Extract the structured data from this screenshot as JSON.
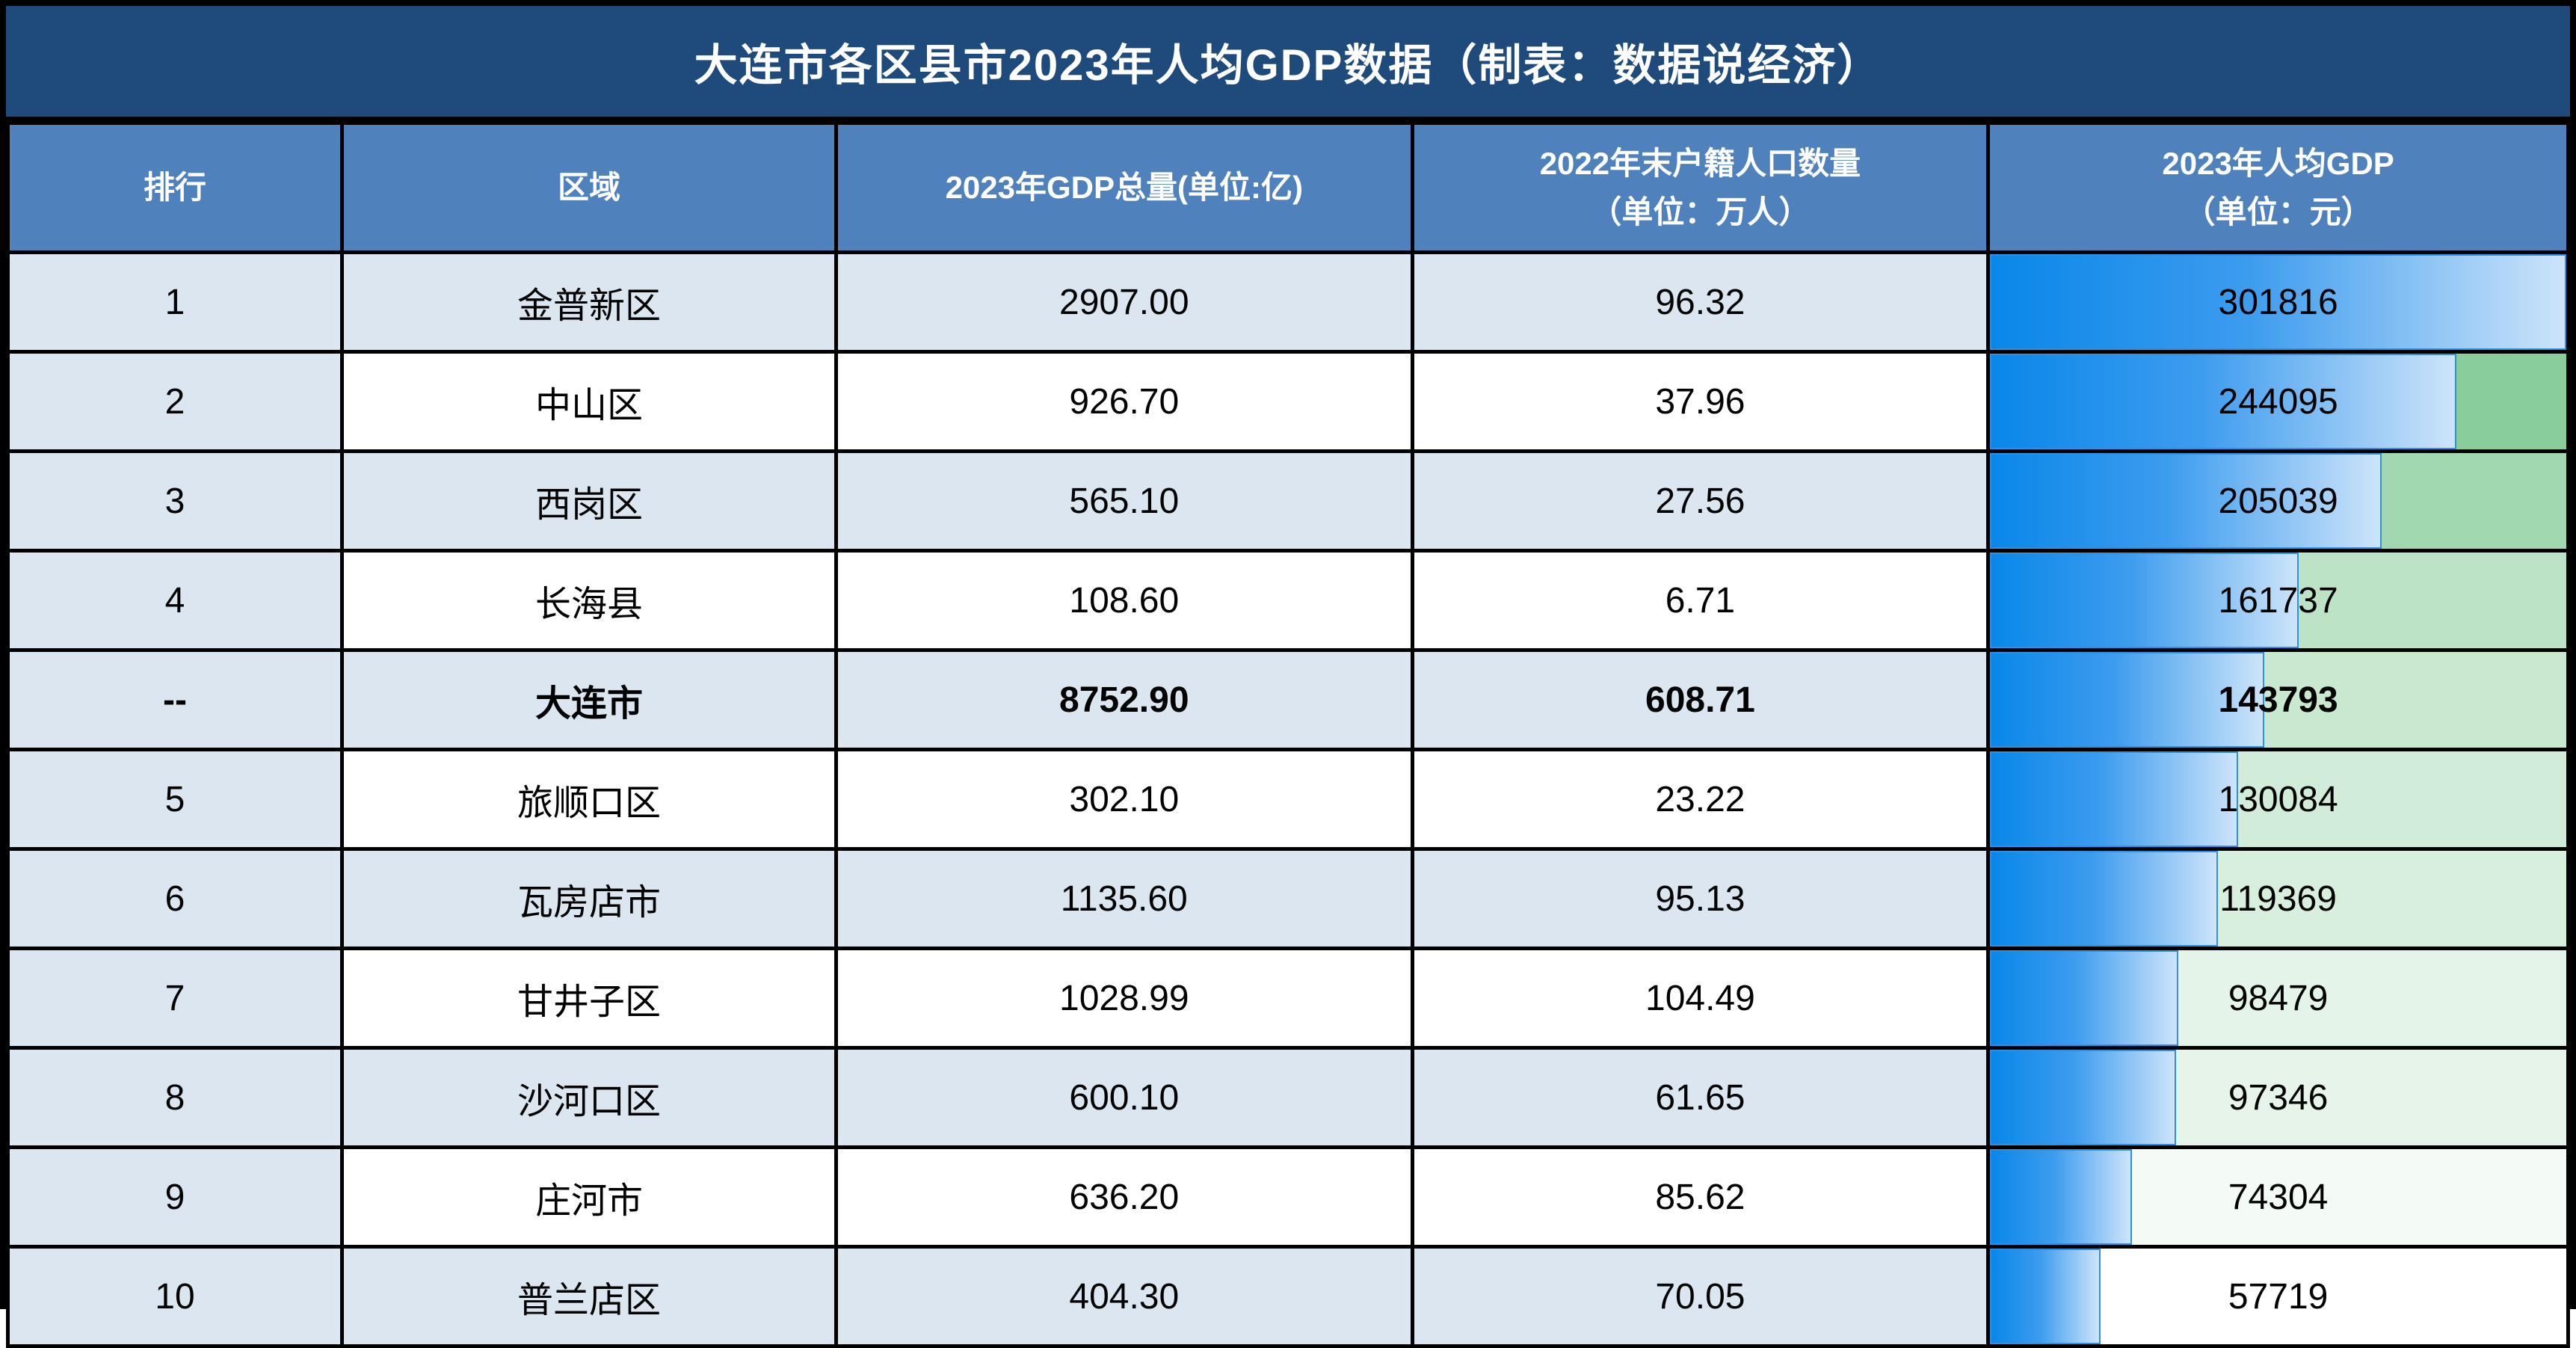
{
  "title": "大连市各区县市2023年人均GDP数据（制表：数据说经济）",
  "colors": {
    "title_background": "#1f4a7c",
    "header_background": "#4f81bd",
    "stripe_light_blue": "#dce6f1",
    "bar_gradient_start": "#0987e9",
    "bar_gradient_end": "#cde4fa",
    "color_scale_max_green": "#63be7b",
    "color_scale_min_white": "#ffffff",
    "border": "#000000"
  },
  "chart_data": {
    "type": "table",
    "title": "大连市各区县市2023年人均GDP数据（制表：数据说经济）",
    "headers": [
      [
        "排行"
      ],
      [
        "区域"
      ],
      [
        "2023年GDP总量(单位:亿)"
      ],
      [
        "2022年末户籍人口数量",
        "（单位：万人）"
      ],
      [
        "2023年人均GDP",
        "（单位：元）"
      ]
    ],
    "databar": {
      "column": "2023年人均GDP（单位：元）",
      "scale_min": 0,
      "scale_max": 301816,
      "color_scale_min_value": 57719,
      "color_scale_max_value": 301816
    },
    "rows": [
      {
        "rank": "1",
        "region": "金普新区",
        "gdp_total": "2907.00",
        "population": "96.32",
        "gdp_per_capita": "301816",
        "gdp_per_capita_value": 301816,
        "bold": false
      },
      {
        "rank": "2",
        "region": "中山区",
        "gdp_total": "926.70",
        "population": "37.96",
        "gdp_per_capita": "244095",
        "gdp_per_capita_value": 244095,
        "bold": false
      },
      {
        "rank": "3",
        "region": "西岗区",
        "gdp_total": "565.10",
        "population": "27.56",
        "gdp_per_capita": "205039",
        "gdp_per_capita_value": 205039,
        "bold": false
      },
      {
        "rank": "4",
        "region": "长海县",
        "gdp_total": "108.60",
        "population": "6.71",
        "gdp_per_capita": "161737",
        "gdp_per_capita_value": 161737,
        "bold": false
      },
      {
        "rank": "--",
        "region": "大连市",
        "gdp_total": "8752.90",
        "population": "608.71",
        "gdp_per_capita": "143793",
        "gdp_per_capita_value": 143793,
        "bold": true
      },
      {
        "rank": "5",
        "region": "旅顺口区",
        "gdp_total": "302.10",
        "population": "23.22",
        "gdp_per_capita": "130084",
        "gdp_per_capita_value": 130084,
        "bold": false
      },
      {
        "rank": "6",
        "region": "瓦房店市",
        "gdp_total": "1135.60",
        "population": "95.13",
        "gdp_per_capita": "119369",
        "gdp_per_capita_value": 119369,
        "bold": false
      },
      {
        "rank": "7",
        "region": "甘井子区",
        "gdp_total": "1028.99",
        "population": "104.49",
        "gdp_per_capita": "98479",
        "gdp_per_capita_value": 98479,
        "bold": false
      },
      {
        "rank": "8",
        "region": "沙河口区",
        "gdp_total": "600.10",
        "population": "61.65",
        "gdp_per_capita": "97346",
        "gdp_per_capita_value": 97346,
        "bold": false
      },
      {
        "rank": "9",
        "region": "庄河市",
        "gdp_total": "636.20",
        "population": "85.62",
        "gdp_per_capita": "74304",
        "gdp_per_capita_value": 74304,
        "bold": false
      },
      {
        "rank": "10",
        "region": "普兰店区",
        "gdp_total": "404.30",
        "population": "70.05",
        "gdp_per_capita": "57719",
        "gdp_per_capita_value": 57719,
        "bold": false
      }
    ]
  }
}
